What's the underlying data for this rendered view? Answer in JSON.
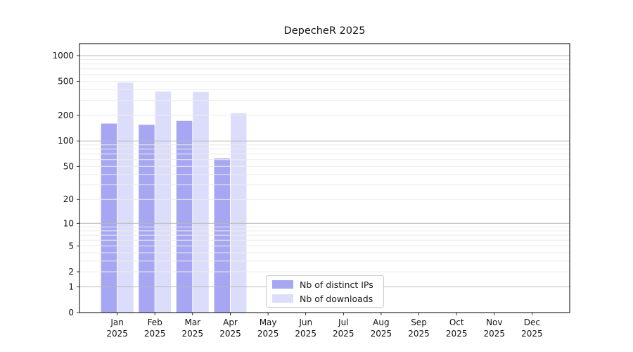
{
  "chart_data": {
    "type": "bar",
    "title": "DepecheR 2025",
    "categories": [
      "Jan",
      "Feb",
      "Mar",
      "Apr",
      "May",
      "Jun",
      "Jul",
      "Aug",
      "Sep",
      "Oct",
      "Nov",
      "Dec"
    ],
    "category_year": "2025",
    "series": [
      {
        "name": "Nb of distinct IPs",
        "color": "#a6a6f2",
        "values": [
          160,
          155,
          172,
          62,
          null,
          null,
          null,
          null,
          null,
          null,
          null,
          null
        ]
      },
      {
        "name": "Nb of downloads",
        "color": "#dcddfa",
        "values": [
          484,
          380,
          375,
          212,
          null,
          null,
          null,
          null,
          null,
          null,
          null,
          null
        ]
      }
    ],
    "ylabel": "",
    "xlabel": "",
    "y_scale": "log1p",
    "y_ticks": [
      0,
      1,
      2,
      5,
      10,
      20,
      50,
      100,
      200,
      500,
      1000
    ],
    "y_major_grid": [
      1,
      10,
      100,
      1000
    ],
    "y_max": 1380,
    "grid": "on",
    "grid_major_color": "#b8b8b8",
    "grid_minor_color": "#ececec",
    "axis_color": "#000000",
    "legend_position": "inside-bottom-center"
  }
}
